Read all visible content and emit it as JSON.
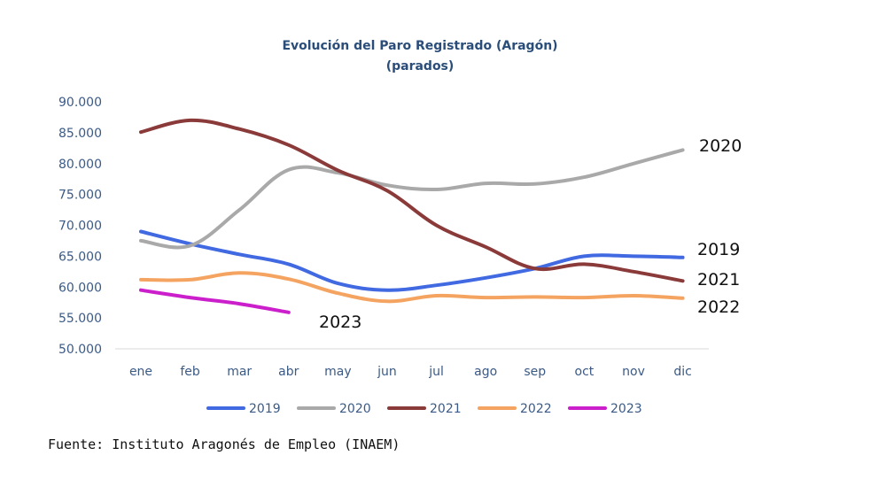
{
  "chart_data": {
    "type": "line",
    "title": "Evolución del Paro Registrado (Aragón)",
    "subtitle": "(parados)",
    "categories": [
      "ene",
      "feb",
      "mar",
      "abr",
      "may",
      "jun",
      "jul",
      "ago",
      "sep",
      "oct",
      "nov",
      "dic"
    ],
    "ylim": [
      50000,
      90000
    ],
    "yticks": [
      50000,
      55000,
      60000,
      65000,
      70000,
      75000,
      80000,
      85000,
      90000
    ],
    "ytick_labels": [
      "50.000",
      "55.000",
      "60.000",
      "65.000",
      "70.000",
      "75.000",
      "80.000",
      "85.000",
      "90.000"
    ],
    "grid": false,
    "legend_position": "bottom",
    "series": [
      {
        "name": "2019",
        "color": "#4169e1",
        "end_label": "2019",
        "values": [
          69000,
          67000,
          65300,
          63700,
          60600,
          59500,
          60300,
          61500,
          63000,
          65000,
          65000,
          64800
        ]
      },
      {
        "name": "2020",
        "color": "#a9a9a9",
        "end_label": "2020",
        "values": [
          67500,
          66700,
          72500,
          79000,
          78500,
          76500,
          75800,
          76800,
          76700,
          77800,
          80000,
          82200
        ]
      },
      {
        "name": "2021",
        "color": "#8b3a3a",
        "end_label": "2021",
        "values": [
          85100,
          87000,
          85600,
          83000,
          78900,
          75600,
          70000,
          66500,
          63000,
          63700,
          62500,
          61000
        ]
      },
      {
        "name": "2022",
        "color": "#f4a460",
        "end_label": "2022",
        "values": [
          61200,
          61200,
          62300,
          61300,
          59000,
          57700,
          58600,
          58300,
          58400,
          58300,
          58600,
          58200
        ]
      },
      {
        "name": "2023",
        "color": "#cc1fcc",
        "end_label": "2023",
        "values": [
          59500,
          58300,
          57300,
          55900,
          null,
          null,
          null,
          null,
          null,
          null,
          null,
          null
        ]
      }
    ]
  },
  "source": "Fuente: Instituto Aragonés de Empleo (INAEM)"
}
